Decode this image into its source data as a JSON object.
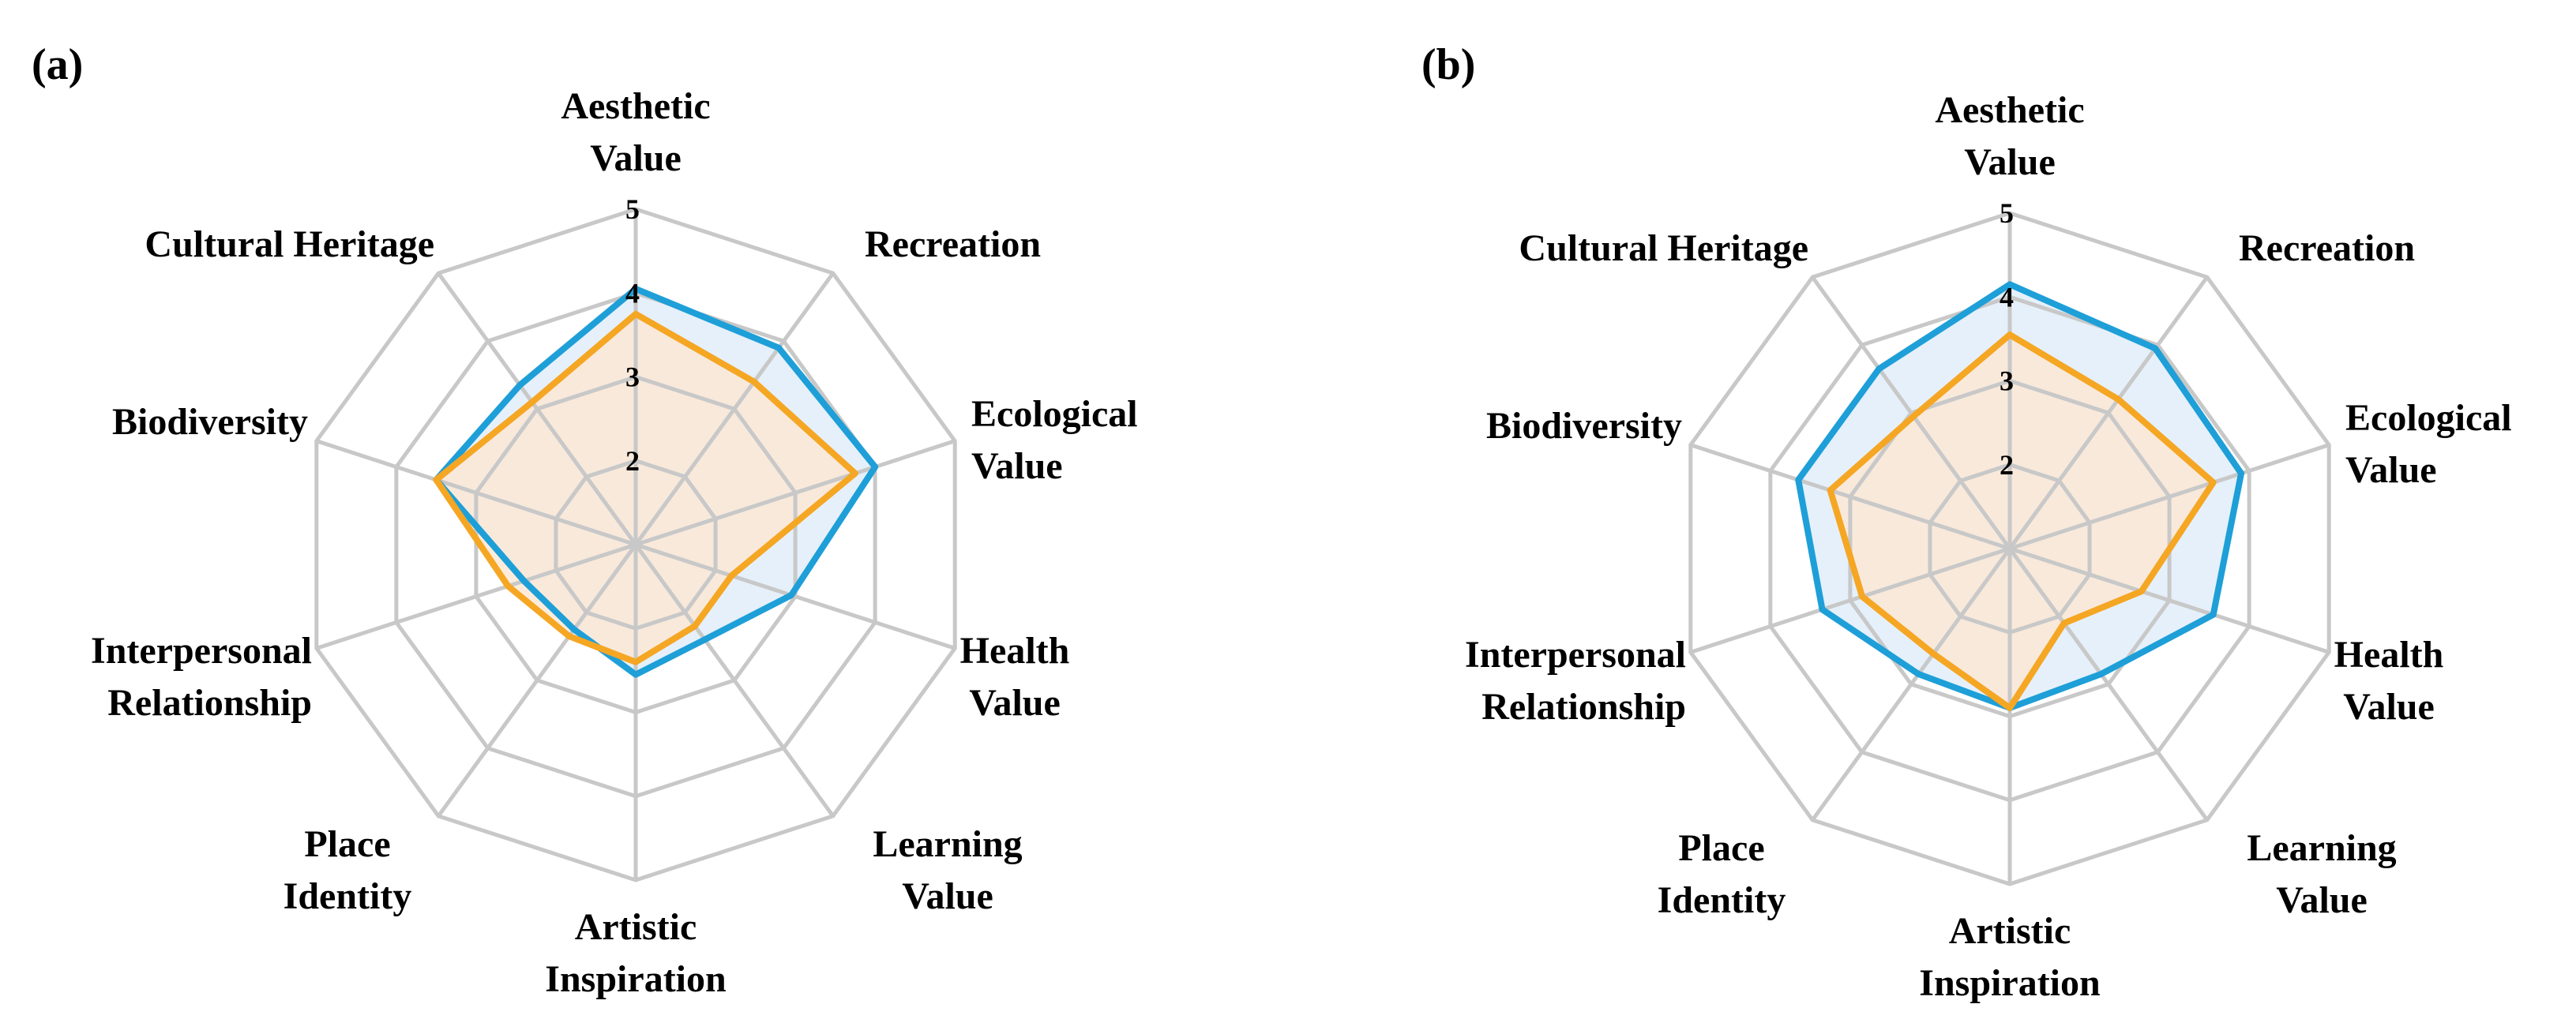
{
  "chart_data": [
    {
      "type": "radar",
      "panel_label": "(a)",
      "categories": [
        [
          "Aesthetic",
          "Value"
        ],
        [
          "Recreation"
        ],
        [
          "Ecological",
          "Value"
        ],
        [
          "Health",
          "Value"
        ],
        [
          "Learning",
          "Value"
        ],
        [
          "Artistic",
          "Inspiration"
        ],
        [
          "Place",
          "Identity"
        ],
        [
          "Interpersonal",
          "Relationship"
        ],
        [
          "Biodiversity"
        ],
        [
          "Cultural Heritage"
        ]
      ],
      "rlim": [
        1,
        5
      ],
      "ticks": [
        2,
        3,
        4,
        5
      ],
      "grid": true,
      "series": [
        {
          "color": "#1E9FD8",
          "fill": "#DCEBF8",
          "values": [
            4.05,
            3.9,
            4.0,
            2.95,
            2.4,
            2.55,
            2.25,
            2.4,
            3.5,
            3.35
          ]
        },
        {
          "color": "#F5A623",
          "fill": "#FCE7D3",
          "values": [
            3.75,
            3.4,
            3.75,
            2.2,
            2.2,
            2.4,
            2.35,
            2.6,
            3.5,
            3.1
          ]
        }
      ]
    },
    {
      "type": "radar",
      "panel_label": "(b)",
      "categories": [
        [
          "Aesthetic",
          "Value"
        ],
        [
          "Recreation"
        ],
        [
          "Ecological",
          "Value"
        ],
        [
          "Health",
          "Value"
        ],
        [
          "Learning",
          "Value"
        ],
        [
          "Artistic",
          "Inspiration"
        ],
        [
          "Place",
          "Identity"
        ],
        [
          "Interpersonal",
          "Relationship"
        ],
        [
          "Biodiversity"
        ],
        [
          "Cultural Heritage"
        ]
      ],
      "rlim": [
        1,
        5
      ],
      "ticks": [
        2,
        3,
        4,
        5
      ],
      "grid": true,
      "series": [
        {
          "color": "#1E9FD8",
          "fill": "#DCEBF8",
          "values": [
            4.15,
            3.95,
            3.9,
            3.55,
            2.85,
            2.9,
            2.85,
            3.35,
            3.65,
            3.65
          ]
        },
        {
          "color": "#F5A623",
          "fill": "#FCE7D3",
          "values": [
            3.55,
            3.2,
            3.55,
            2.65,
            2.1,
            2.9,
            2.55,
            2.85,
            3.25,
            2.95
          ]
        }
      ]
    }
  ]
}
